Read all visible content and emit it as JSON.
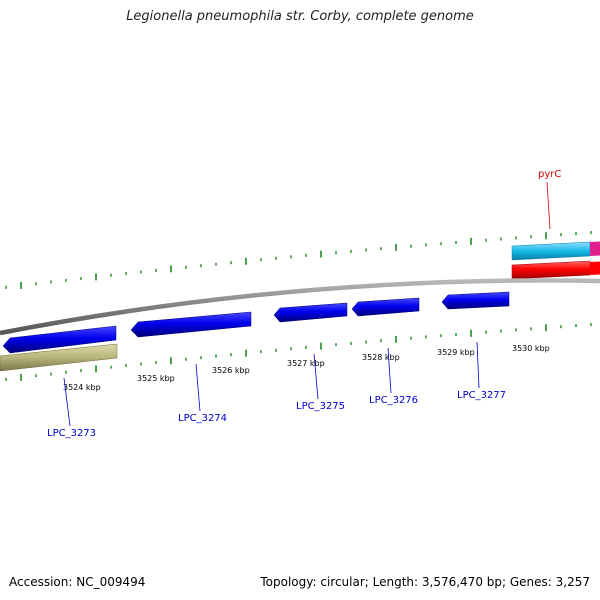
{
  "title": "Legionella pneumophila str. Corby, complete genome",
  "footer": {
    "accession": "Accession: NC_009494",
    "stats": "Topology: circular; Length: 3,576,470 bp; Genes: 3,257"
  },
  "ticks": {
    "labels": [
      "3524 kbp",
      "3525 kbp",
      "3526 kbp",
      "3527 kbp",
      "3528 kbp",
      "3529 kbp",
      "3530 kbp"
    ]
  },
  "genes": [
    {
      "name": "LPC_3273",
      "label": "LPC_3273",
      "strand": "reverse",
      "color": "#0000ee"
    },
    {
      "name": "LPC_3274",
      "label": "LPC_3274",
      "strand": "reverse",
      "color": "#0000ee"
    },
    {
      "name": "LPC_3275",
      "label": "LPC_3275",
      "strand": "reverse",
      "color": "#0000ee"
    },
    {
      "name": "LPC_3276",
      "label": "LPC_3276",
      "strand": "reverse",
      "color": "#0000ee"
    },
    {
      "name": "LPC_3277",
      "label": "LPC_3277",
      "strand": "reverse",
      "color": "#0000ee"
    },
    {
      "name": "pyrC",
      "label": "pyrC",
      "strand": "forward",
      "color": "#ff0000"
    }
  ],
  "colors": {
    "backbone": "#808080",
    "tick": "#1f8a1f",
    "cds_blue": "#0000ee",
    "olive_feature": "#b8b47c",
    "cyan_feature": "#17b8e8",
    "magenta_feature": "#e0208c",
    "red_feature": "#ff0000",
    "label_blue": "#0000cc",
    "label_red": "#cc0000"
  }
}
